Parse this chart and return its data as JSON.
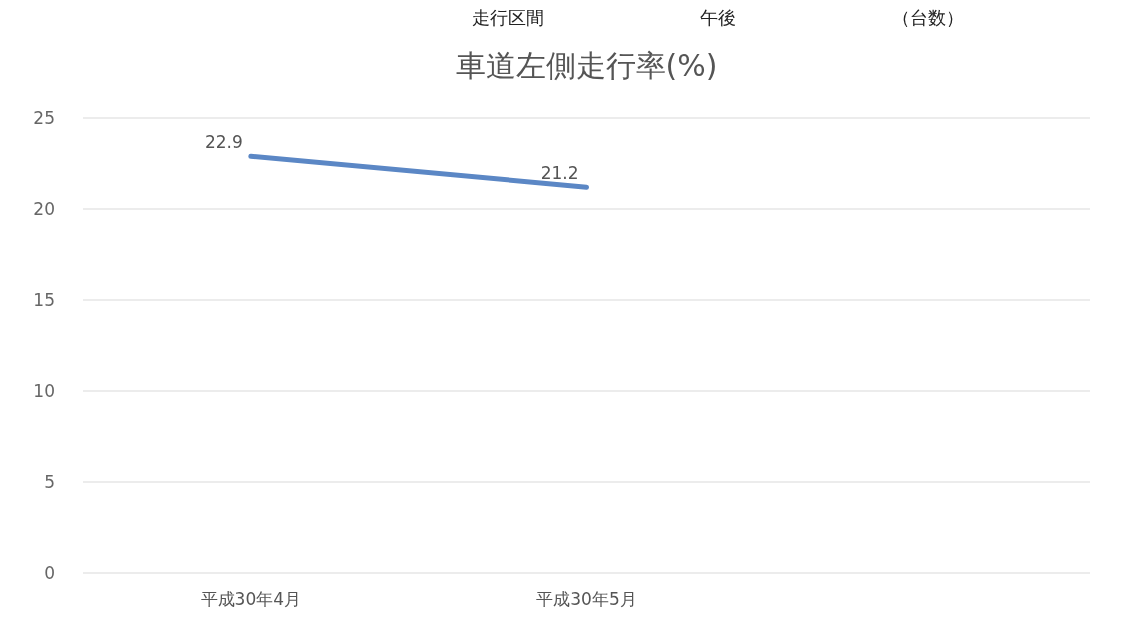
{
  "chart_data": {
    "type": "line",
    "title": "車道左側走行率(%)",
    "categories": [
      "平成30年4月",
      "平成30年5月",
      null
    ],
    "series": [
      {
        "color": "#5b87c5",
        "values": [
          22.9,
          21.2,
          null
        ]
      }
    ],
    "ylim": [
      0,
      25
    ],
    "yticks": [
      0,
      5,
      10,
      15,
      20,
      25
    ],
    "grid": "y",
    "data_labels": true,
    "marker": "none",
    "line_style": "solid",
    "annotations": [
      "走行区間",
      "午後",
      "（台数）"
    ]
  }
}
